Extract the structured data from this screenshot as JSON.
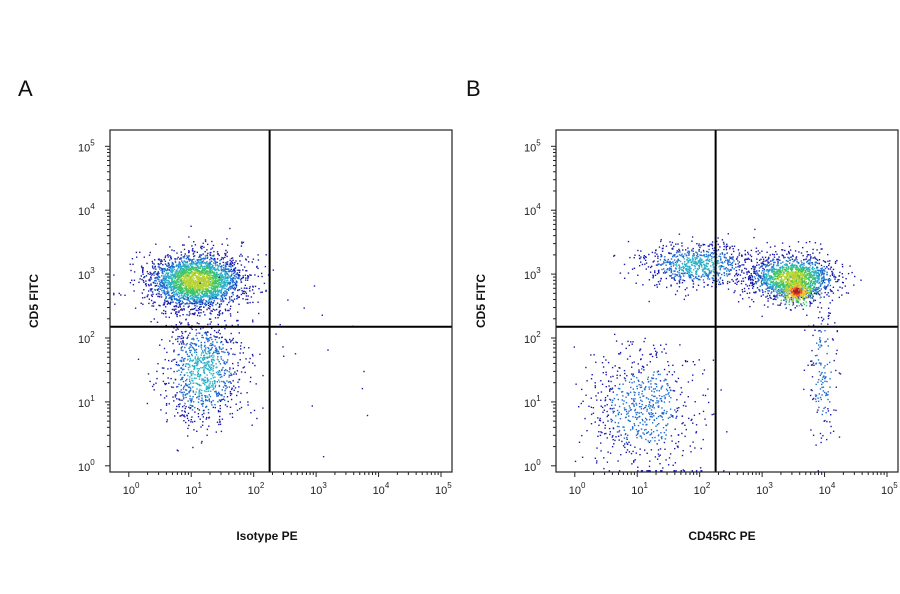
{
  "chart_data": [
    {
      "type": "scatter",
      "panel_label": "A",
      "xlabel": "Isotype PE",
      "ylabel": "CD5 FITC",
      "x_scale": "log",
      "y_scale": "log",
      "xlim": [
        0.5,
        150000
      ],
      "ylim": [
        0.8,
        180000
      ],
      "x_ticks": [
        1,
        10,
        100,
        1000,
        10000,
        100000
      ],
      "y_ticks": [
        1,
        10,
        100,
        1000,
        10000,
        100000
      ],
      "tick_base": "10",
      "tick_exponents": [
        "0",
        "1",
        "2",
        "3",
        "4",
        "5"
      ],
      "quadrant_gate": {
        "x": 180,
        "y": 150
      },
      "clusters": [
        {
          "x_center": 12,
          "y_center": 800,
          "x_log_sd": 0.38,
          "y_log_sd": 0.22,
          "count": 2600,
          "density": "high"
        },
        {
          "x_center": 15,
          "y_center": 30,
          "x_log_sd": 0.32,
          "y_log_sd": 0.42,
          "count": 950,
          "density": "medium"
        },
        {
          "x_center": 500,
          "y_center": 60,
          "x_log_sd": 0.8,
          "y_log_sd": 0.6,
          "count": 22,
          "density": "sparse"
        }
      ],
      "colormap": [
        "#1a1aa8",
        "#1e6cd0",
        "#2bb0c8",
        "#3cc46b",
        "#b5d335",
        "#f2c22a",
        "#e85a1c",
        "#c0181b"
      ]
    },
    {
      "type": "scatter",
      "panel_label": "B",
      "xlabel": "CD45RC PE",
      "ylabel": "CD5 FITC",
      "x_scale": "log",
      "y_scale": "log",
      "xlim": [
        0.5,
        150000
      ],
      "ylim": [
        0.8,
        180000
      ],
      "x_ticks": [
        1,
        10,
        100,
        1000,
        10000,
        100000
      ],
      "y_ticks": [
        1,
        10,
        100,
        1000,
        10000,
        100000
      ],
      "tick_base": "10",
      "tick_exponents": [
        "0",
        "1",
        "2",
        "3",
        "4",
        "5"
      ],
      "quadrant_gate": {
        "x": 180,
        "y": 150
      },
      "clusters": [
        {
          "x_center": 3000,
          "y_center": 900,
          "x_log_sd": 0.35,
          "y_log_sd": 0.17,
          "count": 1500,
          "density": "high"
        },
        {
          "x_center": 3500,
          "y_center": 550,
          "x_log_sd": 0.13,
          "y_log_sd": 0.09,
          "count": 380,
          "density": "peak"
        },
        {
          "x_center": 90,
          "y_center": 1400,
          "x_log_sd": 0.45,
          "y_log_sd": 0.17,
          "count": 800,
          "density": "medium"
        },
        {
          "x_center": 12,
          "y_center": 8,
          "x_log_sd": 0.45,
          "y_log_sd": 0.5,
          "count": 700,
          "density": "low"
        },
        {
          "x_center": 9000,
          "y_center": 30,
          "x_log_sd": 0.12,
          "y_log_sd": 0.6,
          "count": 170,
          "density": "low"
        }
      ],
      "colormap": [
        "#1a1aa8",
        "#1e6cd0",
        "#2bb0c8",
        "#3cc46b",
        "#b5d335",
        "#f2c22a",
        "#e85a1c",
        "#c0181b"
      ]
    }
  ]
}
